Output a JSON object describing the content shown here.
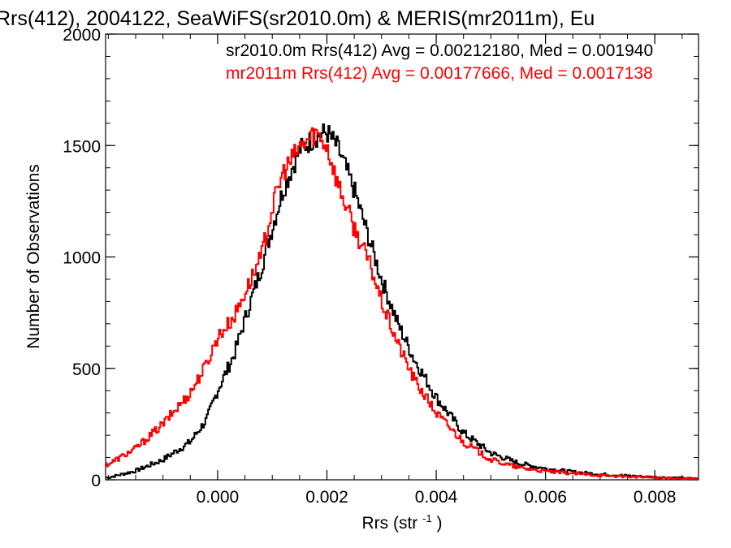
{
  "chart_data": {
    "type": "histogram",
    "title": "Rrs(412), 2004122, SeaWiFS(sr2010.0m) & MERIS(mr2011m), Eu",
    "xlabel": "Rrs (str",
    "xlabel_sup": "-1",
    "xlabel_close": ")",
    "ylabel": "Number of Observations",
    "xlim": [
      -0.00205,
      0.0088
    ],
    "ylim": [
      0,
      2000
    ],
    "xticks": [
      0.0,
      0.002,
      0.004,
      0.006,
      0.008
    ],
    "xtick_labels": [
      "0.000",
      "0.002",
      "0.004",
      "0.006",
      "0.008"
    ],
    "yticks": [
      0,
      500,
      1000,
      1500,
      2000
    ],
    "ytick_labels": [
      "0",
      "500",
      "1000",
      "1500",
      "2000"
    ],
    "annotations": [
      {
        "text": "sr2010.0m Rrs(412) Avg = 0.00212180, Med = 0.001940",
        "color": "#000000"
      },
      {
        "text": "mr2011m Rrs(412) Avg = 0.00177666, Med = 0.0017138",
        "color": "#ff0000"
      }
    ],
    "series": [
      {
        "name": "sr2010.0m",
        "color": "#000000",
        "points": [
          [
            -0.002,
            10
          ],
          [
            -0.0015,
            40
          ],
          [
            -0.001,
            90
          ],
          [
            -0.0005,
            170
          ],
          [
            -0.0002,
            270
          ],
          [
            0.0,
            400
          ],
          [
            0.0003,
            560
          ],
          [
            0.0005,
            720
          ],
          [
            0.0008,
            950
          ],
          [
            0.001,
            1130
          ],
          [
            0.0012,
            1300
          ],
          [
            0.0015,
            1480
          ],
          [
            0.0018,
            1540
          ],
          [
            0.002,
            1560
          ],
          [
            0.0022,
            1490
          ],
          [
            0.0025,
            1300
          ],
          [
            0.0028,
            1060
          ],
          [
            0.003,
            900
          ],
          [
            0.0033,
            700
          ],
          [
            0.0036,
            540
          ],
          [
            0.004,
            370
          ],
          [
            0.0045,
            210
          ],
          [
            0.005,
            120
          ],
          [
            0.0055,
            75
          ],
          [
            0.006,
            50
          ],
          [
            0.0065,
            35
          ],
          [
            0.007,
            25
          ],
          [
            0.0075,
            18
          ],
          [
            0.008,
            12
          ],
          [
            0.0085,
            8
          ],
          [
            0.0088,
            5
          ]
        ]
      },
      {
        "name": "mr2011m",
        "color": "#ff0000",
        "points": [
          [
            -0.002,
            70
          ],
          [
            -0.0015,
            140
          ],
          [
            -0.001,
            250
          ],
          [
            -0.0005,
            390
          ],
          [
            -0.0002,
            520
          ],
          [
            0.0,
            640
          ],
          [
            0.0003,
            730
          ],
          [
            0.0005,
            840
          ],
          [
            0.0008,
            1000
          ],
          [
            0.001,
            1220
          ],
          [
            0.0012,
            1380
          ],
          [
            0.0015,
            1490
          ],
          [
            0.0018,
            1560
          ],
          [
            0.002,
            1500
          ],
          [
            0.0022,
            1330
          ],
          [
            0.0025,
            1130
          ],
          [
            0.0028,
            960
          ],
          [
            0.003,
            800
          ],
          [
            0.0033,
            610
          ],
          [
            0.0036,
            450
          ],
          [
            0.004,
            300
          ],
          [
            0.0045,
            170
          ],
          [
            0.005,
            90
          ],
          [
            0.0055,
            55
          ],
          [
            0.006,
            38
          ],
          [
            0.0065,
            28
          ],
          [
            0.007,
            20
          ],
          [
            0.0075,
            14
          ],
          [
            0.008,
            10
          ],
          [
            0.0085,
            6
          ],
          [
            0.0088,
            4
          ]
        ]
      }
    ]
  }
}
